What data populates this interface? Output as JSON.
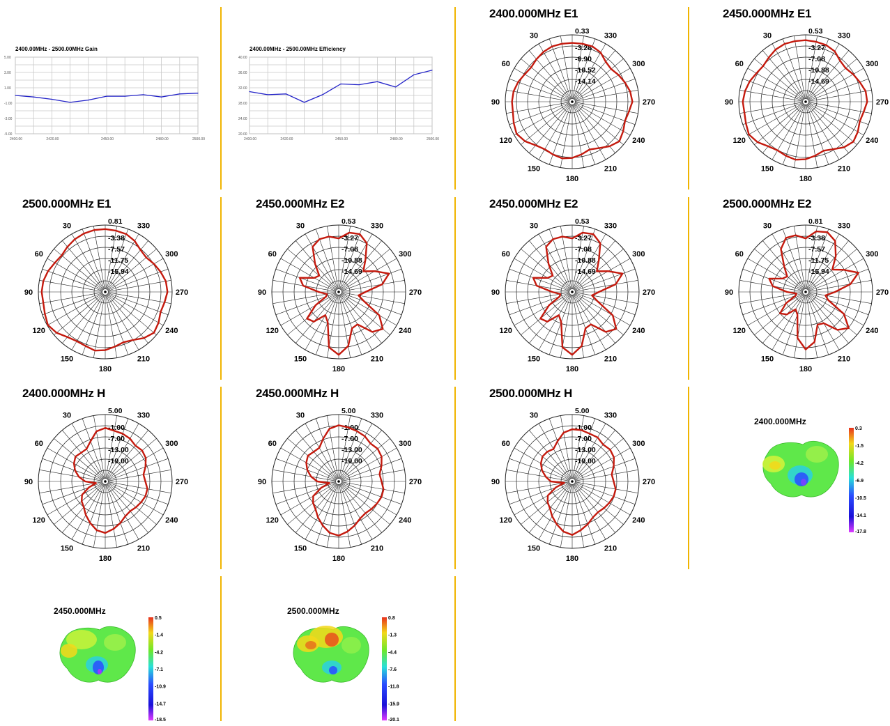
{
  "chart_data": [
    {
      "type": "line",
      "title": "2400.00MHz - 2500.00MHz Gain",
      "x": [
        2400,
        2410,
        2420,
        2430,
        2440,
        2450,
        2460,
        2470,
        2480,
        2490,
        2500
      ],
      "x_tick_labels": [
        "2400.00",
        "2420.00",
        "2450.00",
        "2480.00",
        "2500.00"
      ],
      "x_ticks": [
        2400,
        2420,
        2450,
        2480,
        2500
      ],
      "y_tick_labels": [
        "5.00",
        "3.00",
        "1.00",
        "-1.00",
        "-3.00",
        "-5.00"
      ],
      "y_ticks": [
        5,
        3,
        1,
        -1,
        -3,
        -5
      ],
      "ylim": [
        -5,
        5
      ],
      "series": [
        {
          "values": [
            0.0,
            -0.2,
            -0.5,
            -0.9,
            -0.6,
            -0.1,
            -0.1,
            0.1,
            -0.2,
            0.2,
            0.3
          ]
        }
      ],
      "color": "#2323c8",
      "grid": true
    },
    {
      "type": "line",
      "title": "2400.00MHz - 2500.00MHz Efficiency",
      "x": [
        2400,
        2410,
        2420,
        2430,
        2440,
        2450,
        2460,
        2470,
        2480,
        2490,
        2500
      ],
      "x_tick_labels": [
        "2400.00",
        "2420.00",
        "2450.00",
        "2480.00",
        "2500.00"
      ],
      "x_ticks": [
        2400,
        2420,
        2450,
        2480,
        2500
      ],
      "y_tick_labels": [
        "40.00",
        "36.00",
        "32.00",
        "28.00",
        "24.00",
        "20.00"
      ],
      "y_ticks": [
        40,
        36,
        32,
        28,
        24,
        20
      ],
      "ylim": [
        20,
        40
      ],
      "series": [
        {
          "values": [
            31.0,
            30.2,
            30.4,
            28.2,
            30.2,
            33.0,
            32.8,
            33.6,
            32.2,
            35.4,
            36.6
          ]
        }
      ],
      "color": "#2323c8",
      "grid": true
    },
    {
      "type": "polar",
      "title": "2400.000MHz  E1",
      "r_tick_labels": [
        "0.33",
        "-3.28",
        "-6.90",
        "-10.52",
        "-14.14"
      ],
      "angle_labels": [
        "30",
        "330",
        "60",
        "300",
        "90",
        "270",
        "120",
        "240",
        "150",
        "210",
        "180"
      ],
      "radial_values": [
        0.88,
        0.88,
        0.88,
        0.86,
        0.83,
        0.8,
        0.82,
        0.86,
        0.89,
        0.9,
        0.9,
        0.93,
        0.96,
        0.92,
        0.85,
        0.82,
        0.84,
        0.86,
        0.84,
        0.8,
        0.76,
        0.8,
        0.87,
        0.92,
        0.88,
        0.84,
        0.86,
        0.9,
        0.88,
        0.84,
        0.8,
        0.76,
        0.78,
        0.85,
        0.88,
        0.88
      ]
    },
    {
      "type": "polar",
      "title": "2450.000MHz  E1",
      "r_tick_labels": [
        "0.53",
        "-3.27",
        "-7.08",
        "-10.88",
        "-14.69"
      ],
      "angle_labels": [
        "30",
        "330",
        "60",
        "300",
        "90",
        "270",
        "120",
        "240",
        "150",
        "210",
        "180"
      ],
      "radial_values": [
        0.92,
        0.92,
        0.92,
        0.9,
        0.86,
        0.83,
        0.85,
        0.89,
        0.92,
        0.94,
        0.93,
        0.95,
        0.98,
        0.94,
        0.87,
        0.84,
        0.86,
        0.88,
        0.86,
        0.82,
        0.78,
        0.82,
        0.89,
        0.93,
        0.9,
        0.86,
        0.88,
        0.92,
        0.91,
        0.86,
        0.82,
        0.78,
        0.8,
        0.87,
        0.9,
        0.91
      ]
    },
    {
      "type": "polar",
      "title": "2500.000MHz  E1",
      "r_tick_labels": [
        "0.81",
        "-3.38",
        "-7.57",
        "-11.75",
        "-15.94"
      ],
      "angle_labels": [
        "30",
        "330",
        "60",
        "300",
        "90",
        "270",
        "120",
        "240",
        "150",
        "210",
        "180"
      ],
      "radial_values": [
        0.94,
        0.94,
        0.93,
        0.91,
        0.88,
        0.85,
        0.87,
        0.91,
        0.94,
        0.95,
        0.94,
        0.96,
        0.99,
        0.95,
        0.88,
        0.85,
        0.86,
        0.89,
        0.87,
        0.83,
        0.8,
        0.83,
        0.9,
        0.95,
        0.92,
        0.88,
        0.9,
        0.93,
        0.92,
        0.88,
        0.84,
        0.8,
        0.82,
        0.88,
        0.92,
        0.93
      ]
    },
    {
      "type": "polar",
      "title": "2450.000MHz  E2",
      "r_tick_labels": [
        "0.53",
        "-3.27",
        "-7.08",
        "-10.88",
        "-14.69"
      ],
      "angle_labels": [
        "30",
        "330",
        "60",
        "300",
        "90",
        "270",
        "120",
        "240",
        "150",
        "210",
        "180"
      ],
      "radial_values": [
        0.8,
        0.84,
        0.84,
        0.78,
        0.55,
        0.38,
        0.42,
        0.62,
        0.54,
        0.3,
        0.18,
        0.2,
        0.4,
        0.62,
        0.58,
        0.4,
        0.48,
        0.84,
        0.94,
        0.82,
        0.58,
        0.56,
        0.78,
        0.86,
        0.7,
        0.4,
        0.3,
        0.4,
        0.66,
        0.8,
        0.62,
        0.48,
        0.62,
        0.84,
        0.92,
        0.9
      ]
    },
    {
      "type": "polar",
      "title": "2450.000MHz  E2",
      "r_tick_labels": [
        "0.53",
        "-3.27",
        "-7.08",
        "-10.88",
        "-14.69"
      ],
      "angle_labels": [
        "30",
        "330",
        "60",
        "300",
        "90",
        "270",
        "120",
        "240",
        "150",
        "210",
        "180"
      ],
      "radial_values": [
        0.8,
        0.84,
        0.84,
        0.78,
        0.55,
        0.38,
        0.42,
        0.62,
        0.54,
        0.3,
        0.18,
        0.2,
        0.4,
        0.62,
        0.58,
        0.4,
        0.48,
        0.84,
        0.94,
        0.82,
        0.58,
        0.56,
        0.78,
        0.86,
        0.7,
        0.4,
        0.3,
        0.4,
        0.66,
        0.8,
        0.62,
        0.48,
        0.62,
        0.84,
        0.92,
        0.9
      ]
    },
    {
      "type": "polar",
      "title": "2500.000MHz  E2",
      "r_tick_labels": [
        "0.81",
        "-3.38",
        "-7.57",
        "-11.75",
        "-15.94"
      ],
      "angle_labels": [
        "30",
        "330",
        "60",
        "300",
        "90",
        "270",
        "120",
        "240",
        "150",
        "210",
        "180"
      ],
      "radial_values": [
        0.8,
        0.86,
        0.86,
        0.74,
        0.5,
        0.36,
        0.4,
        0.58,
        0.5,
        0.28,
        0.14,
        0.16,
        0.34,
        0.5,
        0.44,
        0.3,
        0.36,
        0.7,
        0.86,
        0.76,
        0.52,
        0.54,
        0.74,
        0.84,
        0.66,
        0.36,
        0.3,
        0.44,
        0.68,
        0.84,
        0.66,
        0.52,
        0.7,
        0.88,
        0.95,
        0.92
      ]
    },
    {
      "type": "polar",
      "title": "2400.000MHz  H",
      "r_tick_labels": [
        "5.00",
        "-1.00",
        "-7.00",
        "-13.00",
        "-19.00"
      ],
      "angle_labels": [
        "30",
        "330",
        "60",
        "300",
        "90",
        "270",
        "120",
        "240",
        "150",
        "210",
        "180"
      ],
      "radial_values": [
        0.8,
        0.76,
        0.64,
        0.56,
        0.56,
        0.58,
        0.54,
        0.48,
        0.4,
        0.3,
        0.14,
        0.26,
        0.4,
        0.46,
        0.5,
        0.58,
        0.66,
        0.74,
        0.77,
        0.72,
        0.66,
        0.6,
        0.58,
        0.6,
        0.62,
        0.64,
        0.64,
        0.6,
        0.58,
        0.64,
        0.7,
        0.72,
        0.7,
        0.74,
        0.76,
        0.77
      ]
    },
    {
      "type": "polar",
      "title": "2450.000MHz  H",
      "r_tick_labels": [
        "5.00",
        "-1.00",
        "-7.00",
        "-13.00",
        "-19.00"
      ],
      "angle_labels": [
        "30",
        "330",
        "60",
        "300",
        "90",
        "270",
        "120",
        "240",
        "150",
        "210",
        "180"
      ],
      "radial_values": [
        0.84,
        0.8,
        0.68,
        0.58,
        0.58,
        0.6,
        0.56,
        0.5,
        0.42,
        0.32,
        0.14,
        0.28,
        0.44,
        0.5,
        0.54,
        0.62,
        0.7,
        0.78,
        0.81,
        0.76,
        0.7,
        0.64,
        0.62,
        0.64,
        0.66,
        0.68,
        0.68,
        0.64,
        0.62,
        0.68,
        0.74,
        0.76,
        0.74,
        0.78,
        0.8,
        0.82
      ]
    },
    {
      "type": "polar",
      "title": "2500.000MHz  H",
      "r_tick_labels": [
        "5.00",
        "-1.00",
        "-7.00",
        "-13.00",
        "-19.00"
      ],
      "angle_labels": [
        "30",
        "330",
        "60",
        "300",
        "90",
        "270",
        "120",
        "240",
        "150",
        "210",
        "180"
      ],
      "radial_values": [
        0.78,
        0.74,
        0.64,
        0.56,
        0.58,
        0.58,
        0.54,
        0.48,
        0.4,
        0.32,
        0.12,
        0.26,
        0.42,
        0.48,
        0.52,
        0.6,
        0.68,
        0.76,
        0.8,
        0.74,
        0.68,
        0.62,
        0.6,
        0.62,
        0.64,
        0.66,
        0.66,
        0.62,
        0.6,
        0.66,
        0.72,
        0.74,
        0.72,
        0.76,
        0.76,
        0.78
      ]
    },
    {
      "type": "heatmap",
      "title": "2400.000MHz",
      "colorbar_labels": [
        "0.3",
        "-1.5",
        "-4.2",
        "-6.9",
        "-10.5",
        "-14.1",
        "-17.8"
      ]
    },
    {
      "type": "heatmap",
      "title": "2450.000MHz",
      "colorbar_labels": [
        "0.5",
        "-1.4",
        "-4.2",
        "-7.1",
        "-10.9",
        "-14.7",
        "-18.5"
      ]
    },
    {
      "type": "heatmap",
      "title": "2500.000MHz",
      "colorbar_labels": [
        "0.8",
        "-1.3",
        "-4.4",
        "-7.6",
        "-11.8",
        "-15.9",
        "-20.1"
      ]
    }
  ],
  "colors": {
    "divider": "#f0b400",
    "pattern": "#c41a0e",
    "line_series": "#2323c8",
    "grid": "#c8c8c8"
  }
}
